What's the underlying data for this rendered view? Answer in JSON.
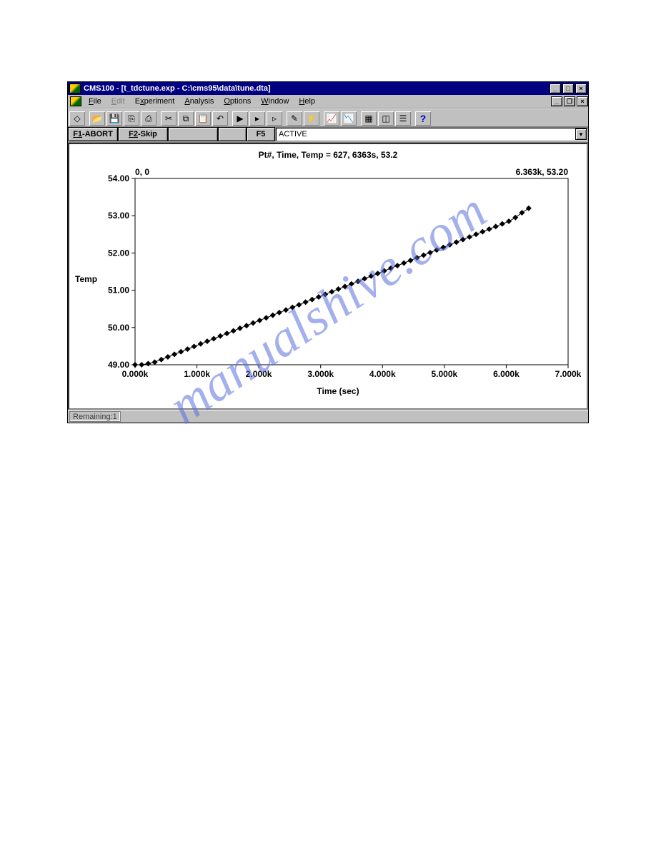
{
  "window": {
    "title": "CMS100 - [t_tdctune.exp - C:\\cms95\\data\\tune.dta]",
    "menus": [
      {
        "label": "File",
        "key": "F",
        "enabled": true
      },
      {
        "label": "Edit",
        "key": "E",
        "enabled": false
      },
      {
        "label": "Experiment",
        "key": "x",
        "enabled": true,
        "full": "Experiment"
      },
      {
        "label": "Analysis",
        "key": "A",
        "enabled": true
      },
      {
        "label": "Options",
        "key": "O",
        "enabled": true
      },
      {
        "label": "Window",
        "key": "W",
        "enabled": true
      },
      {
        "label": "Help",
        "key": "H",
        "enabled": true
      }
    ],
    "fkeys": {
      "f1": "F1-ABORT",
      "f2": "F2-Skip",
      "f5": "F5"
    },
    "status_dropdown": "ACTIVE",
    "statusbar": "Remaining:1"
  },
  "chart": {
    "type": "line",
    "title": "Pt#, Time, Temp = 627, 6363s, 53.2",
    "ylabel": "Temp",
    "xlabel": "Time (sec)",
    "corner_tl": "0, 0",
    "corner_tr": "6.363k, 53.20",
    "xlim": [
      0,
      7000
    ],
    "ylim": [
      49,
      54
    ],
    "xticks": [
      0,
      1000,
      2000,
      3000,
      4000,
      5000,
      6000,
      7000
    ],
    "xticklabels": [
      "0.000k",
      "1.000k",
      "2.000k",
      "3.000k",
      "4.000k",
      "5.000k",
      "6.000k",
      "7.000k"
    ],
    "yticks": [
      49,
      50,
      51,
      52,
      53,
      54
    ],
    "yticklabels": [
      "49.00",
      "50.00",
      "51.00",
      "52.00",
      "53.00",
      "54.00"
    ],
    "plot_bg": "#ffffff",
    "axis_color": "#000000",
    "series_color": "#000000",
    "marker": "diamond",
    "marker_size": 4,
    "data_x": [
      0,
      106,
      212,
      318,
      424,
      530,
      636,
      742,
      848,
      954,
      1060,
      1166,
      1272,
      1378,
      1484,
      1590,
      1696,
      1802,
      1908,
      2014,
      2120,
      2226,
      2332,
      2438,
      2544,
      2650,
      2756,
      2862,
      2968,
      3074,
      3180,
      3286,
      3392,
      3498,
      3604,
      3710,
      3816,
      3922,
      4028,
      4134,
      4240,
      4346,
      4452,
      4558,
      4664,
      4770,
      4876,
      4982,
      5088,
      5194,
      5300,
      5406,
      5512,
      5618,
      5724,
      5830,
      5936,
      6042,
      6148,
      6254,
      6363
    ],
    "data_y": [
      49.0,
      49.0,
      49.03,
      49.07,
      49.14,
      49.21,
      49.28,
      49.35,
      49.42,
      49.49,
      49.56,
      49.63,
      49.7,
      49.77,
      49.84,
      49.91,
      49.98,
      50.05,
      50.12,
      50.19,
      50.26,
      50.33,
      50.4,
      50.47,
      50.54,
      50.61,
      50.68,
      50.75,
      50.82,
      50.89,
      50.96,
      51.03,
      51.1,
      51.17,
      51.24,
      51.31,
      51.38,
      51.45,
      51.52,
      51.59,
      51.66,
      51.73,
      51.8,
      51.87,
      51.94,
      52.01,
      52.08,
      52.15,
      52.22,
      52.29,
      52.36,
      52.43,
      52.5,
      52.57,
      52.64,
      52.71,
      52.78,
      52.85,
      52.95,
      53.08,
      53.2
    ]
  },
  "watermark": "manualshive.com",
  "toolbar_icons": [
    "new",
    "open",
    "save",
    "saveall",
    "print",
    "cut",
    "copy",
    "paste",
    "undo",
    "run1",
    "run2",
    "run3",
    "wand",
    "bolt",
    "chart1",
    "chart2",
    "tile",
    "split",
    "props",
    "help"
  ]
}
